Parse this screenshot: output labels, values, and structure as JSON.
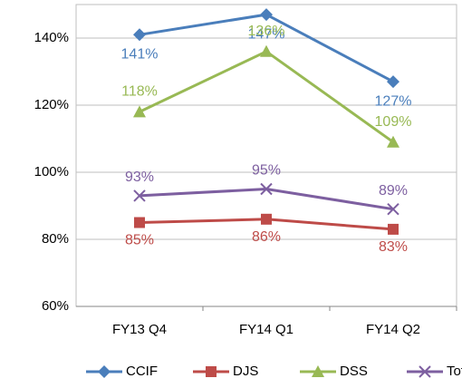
{
  "chart_data": {
    "type": "line",
    "categories": [
      "FY13 Q4",
      "FY14 Q1",
      "FY14 Q2"
    ],
    "series": [
      {
        "name": "CCIF",
        "color": "#4a7ebb",
        "marker": "diamond",
        "values": [
          141,
          147,
          127
        ],
        "value_labels": [
          "141%",
          "147%",
          "127%"
        ]
      },
      {
        "name": "DJS",
        "color": "#be4b48",
        "marker": "square",
        "values": [
          85,
          86,
          83
        ],
        "value_labels": [
          "85%",
          "86%",
          "83%"
        ]
      },
      {
        "name": "DSS",
        "color": "#98b954",
        "marker": "triangle",
        "values": [
          118,
          136,
          109
        ],
        "value_labels": [
          "118%",
          "136%",
          "109%"
        ]
      },
      {
        "name": "Total",
        "color": "#7d5fa0",
        "marker": "x",
        "values": [
          93,
          95,
          89
        ],
        "value_labels": [
          "93%",
          "95%",
          "89%"
        ]
      }
    ],
    "ylim": [
      60,
      150
    ],
    "yticks": [
      {
        "value": 60,
        "label": "60%"
      },
      {
        "value": 80,
        "label": "80%"
      },
      {
        "value": 100,
        "label": "100%"
      },
      {
        "value": 120,
        "label": "120%"
      },
      {
        "value": 140,
        "label": "140%"
      }
    ],
    "grid": true,
    "legend": "bottom"
  }
}
